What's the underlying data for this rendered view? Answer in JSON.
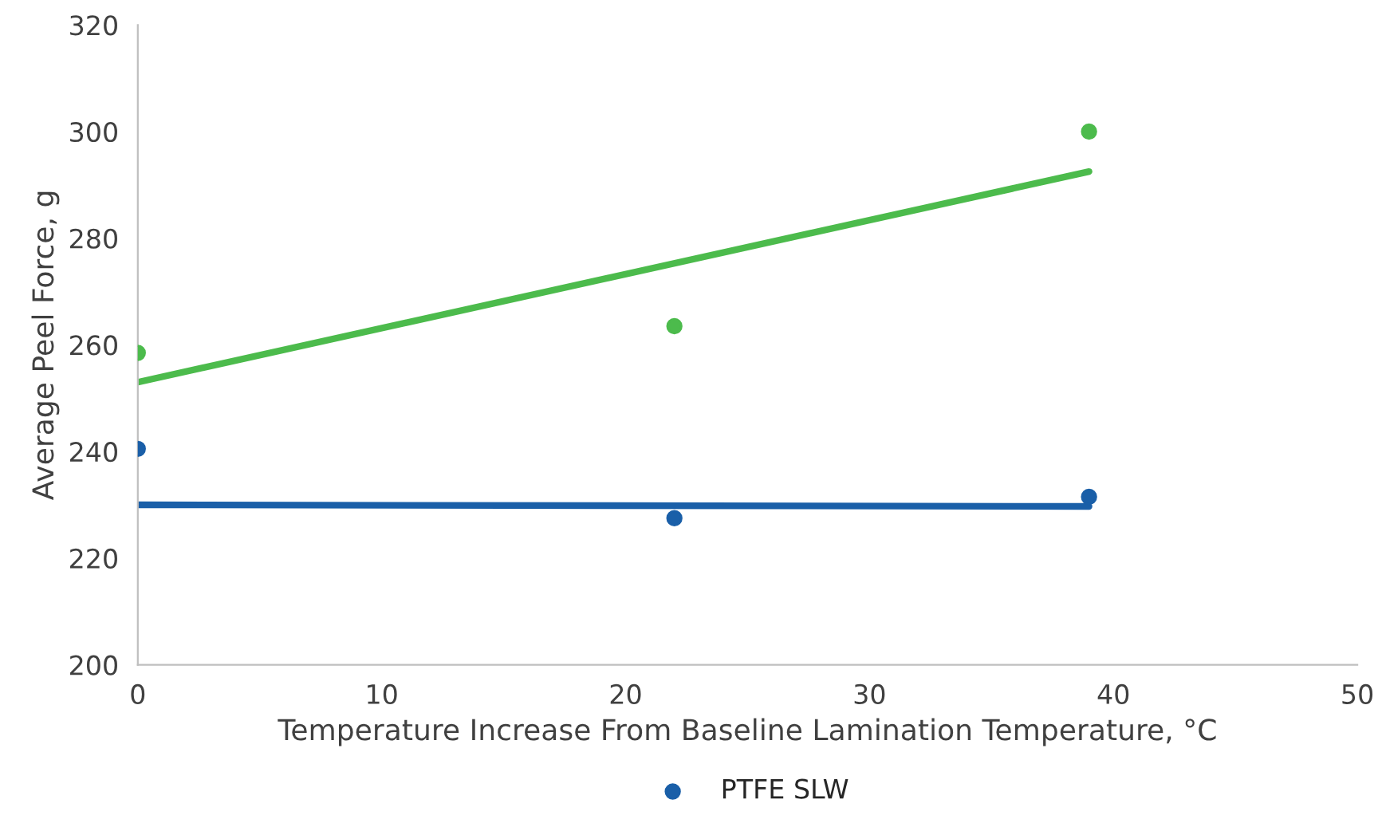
{
  "chart_data": {
    "type": "scatter",
    "xlabel": "Temperature Increase From Baseline Lamination Temperature, °C",
    "ylabel": "Average Peel Force, g",
    "xlim": [
      0,
      50
    ],
    "xticks": [
      0,
      10,
      20,
      30,
      40,
      50
    ],
    "ylim": [
      200,
      320
    ],
    "yticks": [
      200,
      220,
      240,
      260,
      280,
      300,
      320
    ],
    "grid": false,
    "legend": "bottom",
    "marker": "circle",
    "series": [
      {
        "color": "#4cbb4c",
        "x": [
          0,
          22,
          39
        ],
        "values": [
          258.5,
          263.5,
          300
        ]
      },
      {
        "name": "PTFE SLW",
        "color": "#1a5fa8",
        "x": [
          0,
          22,
          39
        ],
        "values": [
          240.5,
          227.5,
          231.5
        ]
      },
      {
        "type": "line",
        "color": "#4cbb4c",
        "x": [
          0,
          39
        ],
        "values": [
          253,
          292.5
        ],
        "marker": "none"
      },
      {
        "type": "line",
        "color": "#1a5fa8",
        "x": [
          0,
          39
        ],
        "values": [
          230,
          229.7
        ],
        "marker": "none"
      }
    ]
  }
}
